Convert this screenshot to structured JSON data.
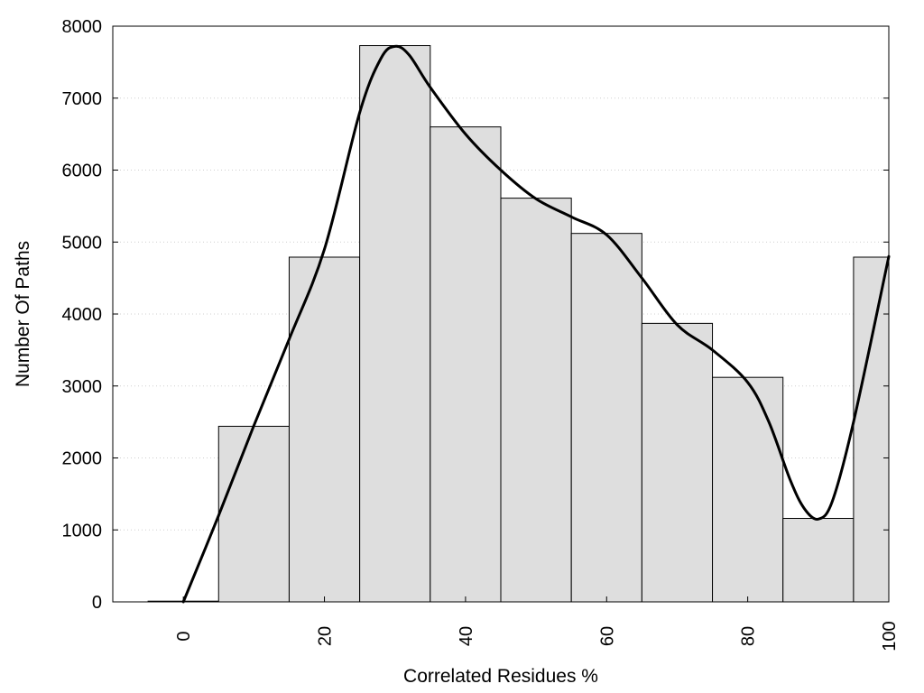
{
  "chart_data": {
    "type": "bar",
    "title": "",
    "xlabel": "Correlated Residues %",
    "ylabel": "Number Of Paths",
    "x": [
      0,
      10,
      20,
      30,
      40,
      50,
      60,
      70,
      80,
      90,
      100
    ],
    "bin_width": 10,
    "values": [
      10,
      2440,
      4790,
      7730,
      6600,
      5610,
      5120,
      3870,
      3120,
      1160,
      4790
    ],
    "xlim": [
      -10,
      100
    ],
    "ylim": [
      0,
      8000
    ],
    "xticks": [
      "0",
      "20",
      "40",
      "60",
      "80",
      "100"
    ],
    "yticks": [
      "0",
      "1000",
      "2000",
      "3000",
      "4000",
      "5000",
      "6000",
      "7000",
      "8000"
    ],
    "grid": "horizontal dotted",
    "legend": "none",
    "bar_color": "#dedede",
    "curve_color": "#000000",
    "curve": {
      "x": [
        0,
        5,
        10,
        15,
        20,
        25,
        28,
        30,
        32,
        35,
        40,
        45,
        50,
        55,
        60,
        65,
        70,
        75,
        80,
        83,
        86,
        88,
        90,
        92,
        95,
        100
      ],
      "y": [
        0,
        1200,
        2450,
        3650,
        4900,
        6800,
        7550,
        7720,
        7600,
        7150,
        6500,
        6000,
        5600,
        5350,
        5100,
        4500,
        3850,
        3500,
        3050,
        2500,
        1700,
        1300,
        1150,
        1400,
        2500,
        4800
      ]
    }
  }
}
